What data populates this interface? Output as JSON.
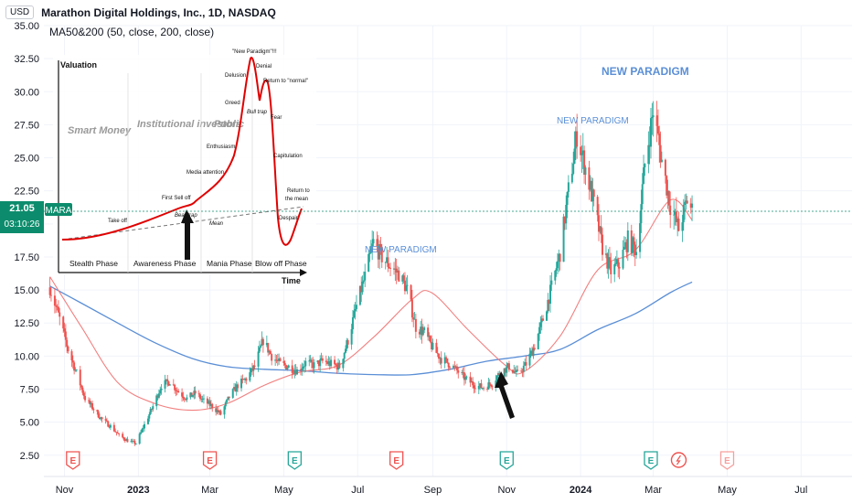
{
  "header": {
    "currency": "USD",
    "title": "Marathon Digital Holdings, Inc., 1D, NASDAQ",
    "indicator": "MA50&200 (50, close, 200, close)"
  },
  "price_tag": {
    "symbol": "MARA",
    "price": "21.05",
    "countdown": "03:10:26"
  },
  "inset": {
    "ylabel": "Valuation",
    "xlabel": "Time",
    "groups": [
      "Smart Money",
      "Institutional investors",
      "Public"
    ],
    "phases": [
      "Stealth Phase",
      "Awareness Phase",
      "Mania Phase",
      "Blow off Phase"
    ],
    "stages": [
      "Take off",
      "First Sell off",
      "Bear trap",
      "Mean",
      "Media attention",
      "Enthusiasm",
      "Greed",
      "Delusion",
      "\"New Paradigm\"!!!",
      "Denial",
      "Return to \"normal\"",
      "Bull trap",
      "Fear",
      "Capitulation",
      "Return to the mean",
      "Despair"
    ]
  },
  "annotations": [
    "NEW PARADIGM",
    "NEW PARADIGM",
    "NEW PARADIGM"
  ],
  "colors": {
    "up": "#26a69a",
    "down": "#ef5350",
    "ma50": "#f28080",
    "ma200": "#5b8fd6",
    "earn_red": "#ef5350",
    "earn_green": "#26a69a"
  },
  "chart_data": {
    "type": "candlestick",
    "title": "Marathon Digital Holdings, Inc., 1D, NASDAQ",
    "ylim": [
      2.0,
      35.0
    ],
    "yticks": [
      "35.00",
      "32.50",
      "30.00",
      "27.50",
      "25.00",
      "22.50",
      "20.00",
      "17.50",
      "15.00",
      "12.50",
      "10.00",
      "7.50",
      "5.00",
      "2.50"
    ],
    "xticks": [
      "Nov",
      "2023",
      "Mar",
      "May",
      "Jul",
      "Sep",
      "Nov",
      "2024",
      "Mar",
      "May",
      "Jul"
    ],
    "close_path": [
      [
        "2022-10-20",
        15.2
      ],
      [
        "2022-10-28",
        12.8
      ],
      [
        "2022-11-04",
        10.5
      ],
      [
        "2022-11-11",
        8.7
      ],
      [
        "2022-11-18",
        6.8
      ],
      [
        "2022-11-25",
        6.0
      ],
      [
        "2022-12-02",
        5.2
      ],
      [
        "2022-12-09",
        4.7
      ],
      [
        "2022-12-16",
        4.0
      ],
      [
        "2022-12-23",
        3.6
      ],
      [
        "2022-12-30",
        3.4
      ],
      [
        "2023-01-06",
        4.8
      ],
      [
        "2023-01-13",
        6.2
      ],
      [
        "2023-01-20",
        7.8
      ],
      [
        "2023-01-27",
        8.1
      ],
      [
        "2023-02-03",
        7.3
      ],
      [
        "2023-02-10",
        6.8
      ],
      [
        "2023-02-17",
        7.2
      ],
      [
        "2023-02-24",
        6.6
      ],
      [
        "2023-03-03",
        6.2
      ],
      [
        "2023-03-10",
        5.6
      ],
      [
        "2023-03-17",
        6.9
      ],
      [
        "2023-03-24",
        7.8
      ],
      [
        "2023-03-31",
        8.3
      ],
      [
        "2023-04-07",
        9.2
      ],
      [
        "2023-04-14",
        11.2
      ],
      [
        "2023-04-21",
        10.0
      ],
      [
        "2023-04-28",
        9.4
      ],
      [
        "2023-05-05",
        9.2
      ],
      [
        "2023-05-12",
        8.9
      ],
      [
        "2023-05-19",
        9.5
      ],
      [
        "2023-05-26",
        9.3
      ],
      [
        "2023-06-02",
        9.6
      ],
      [
        "2023-06-09",
        9.4
      ],
      [
        "2023-06-16",
        9.2
      ],
      [
        "2023-06-23",
        11.2
      ],
      [
        "2023-06-30",
        13.8
      ],
      [
        "2023-07-07",
        16.0
      ],
      [
        "2023-07-14",
        18.6
      ],
      [
        "2023-07-21",
        17.5
      ],
      [
        "2023-07-28",
        16.8
      ],
      [
        "2023-08-04",
        16.2
      ],
      [
        "2023-08-11",
        15.0
      ],
      [
        "2023-08-18",
        12.2
      ],
      [
        "2023-08-25",
        11.8
      ],
      [
        "2023-09-01",
        10.6
      ],
      [
        "2023-09-08",
        9.8
      ],
      [
        "2023-09-15",
        9.4
      ],
      [
        "2023-09-22",
        8.8
      ],
      [
        "2023-09-29",
        8.2
      ],
      [
        "2023-10-06",
        7.8
      ],
      [
        "2023-10-13",
        7.6
      ],
      [
        "2023-10-20",
        8.0
      ],
      [
        "2023-10-27",
        8.8
      ],
      [
        "2023-11-03",
        9.2
      ],
      [
        "2023-11-10",
        8.6
      ],
      [
        "2023-11-17",
        9.4
      ],
      [
        "2023-11-24",
        10.8
      ],
      [
        "2023-12-01",
        12.8
      ],
      [
        "2023-12-08",
        15.2
      ],
      [
        "2023-12-15",
        17.8
      ],
      [
        "2023-12-22",
        22.5
      ],
      [
        "2023-12-29",
        26.8
      ],
      [
        "2024-01-05",
        24.2
      ],
      [
        "2024-01-12",
        21.5
      ],
      [
        "2024-01-19",
        18.2
      ],
      [
        "2024-01-26",
        16.4
      ],
      [
        "2024-02-02",
        17.0
      ],
      [
        "2024-02-09",
        18.8
      ],
      [
        "2024-02-16",
        18.0
      ],
      [
        "2024-02-23",
        24.5
      ],
      [
        "2024-03-01",
        28.6
      ],
      [
        "2024-03-08",
        24.8
      ],
      [
        "2024-03-15",
        21.4
      ],
      [
        "2024-03-22",
        19.6
      ],
      [
        "2024-03-29",
        21.8
      ],
      [
        "2024-04-02",
        21.05
      ]
    ],
    "ma50_path": [
      [
        "2022-10-20",
        16.0
      ],
      [
        "2022-11-15",
        12.2
      ],
      [
        "2022-12-15",
        8.0
      ],
      [
        "2023-01-15",
        6.4
      ],
      [
        "2023-02-15",
        5.9
      ],
      [
        "2023-03-15",
        6.4
      ],
      [
        "2023-04-15",
        7.8
      ],
      [
        "2023-05-15",
        8.8
      ],
      [
        "2023-06-15",
        9.3
      ],
      [
        "2023-07-15",
        11.5
      ],
      [
        "2023-08-15",
        14.3
      ],
      [
        "2023-08-31",
        14.8
      ],
      [
        "2023-09-30",
        12.0
      ],
      [
        "2023-10-31",
        9.3
      ],
      [
        "2023-11-15",
        8.8
      ],
      [
        "2023-12-15",
        11.5
      ],
      [
        "2024-01-15",
        16.5
      ],
      [
        "2024-02-15",
        18.0
      ],
      [
        "2024-03-15",
        21.8
      ],
      [
        "2024-04-02",
        20.3
      ]
    ],
    "ma200_path": [
      [
        "2022-10-20",
        15.3
      ],
      [
        "2022-11-15",
        14.0
      ],
      [
        "2022-12-15",
        12.5
      ],
      [
        "2023-01-15",
        11.0
      ],
      [
        "2023-02-15",
        9.8
      ],
      [
        "2023-03-15",
        9.2
      ],
      [
        "2023-04-15",
        9.0
      ],
      [
        "2023-05-15",
        8.9
      ],
      [
        "2023-06-15",
        8.7
      ],
      [
        "2023-07-15",
        8.6
      ],
      [
        "2023-08-15",
        8.6
      ],
      [
        "2023-09-15",
        9.0
      ],
      [
        "2023-10-15",
        9.6
      ],
      [
        "2023-11-15",
        10.0
      ],
      [
        "2023-12-15",
        10.5
      ],
      [
        "2024-01-15",
        12.0
      ],
      [
        "2024-02-15",
        13.2
      ],
      [
        "2024-03-15",
        14.8
      ],
      [
        "2024-04-02",
        15.6
      ]
    ],
    "earnings": [
      {
        "date": "2022-11-08",
        "type": "E",
        "status": "miss"
      },
      {
        "date": "2023-03-01",
        "type": "E",
        "status": "miss"
      },
      {
        "date": "2023-05-10",
        "type": "E",
        "status": "beat"
      },
      {
        "date": "2023-08-02",
        "type": "E",
        "status": "miss"
      },
      {
        "date": "2023-11-01",
        "type": "E",
        "status": "beat"
      },
      {
        "date": "2024-02-28",
        "type": "E",
        "status": "beat"
      },
      {
        "date": "2024-03-22",
        "type": "split",
        "status": "miss"
      },
      {
        "date": "2024-05-01",
        "type": "E",
        "status": "future"
      }
    ]
  }
}
